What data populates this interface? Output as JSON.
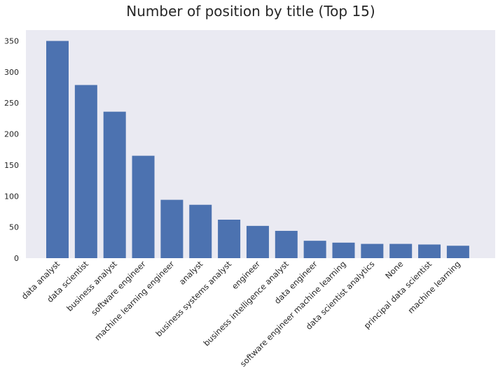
{
  "chart_data": {
    "type": "bar",
    "title": "Number of position by title (Top 15)",
    "xlabel": "",
    "ylabel": "",
    "categories": [
      "data analyst",
      "data scientist",
      "business analyst",
      "software engineer",
      "machine learning engineer",
      "analyst",
      "business systems analyst",
      "engineer",
      "business intelligence analyst",
      "data engineer",
      "software engineer machine learning",
      "data scientist analytics",
      "None",
      "principal data scientist",
      "machine learning"
    ],
    "values": [
      350,
      279,
      236,
      165,
      94,
      86,
      62,
      52,
      44,
      28,
      25,
      23,
      23,
      22,
      20
    ],
    "ylim": [
      0,
      367.5
    ],
    "yticks": [
      0,
      50,
      100,
      150,
      200,
      250,
      300,
      350
    ],
    "grid": false,
    "bar_color": "#4c72b0",
    "plot_background": "#eaeaf2"
  }
}
